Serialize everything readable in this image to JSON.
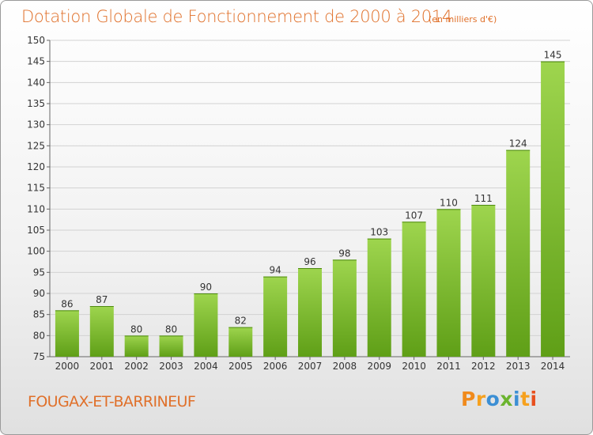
{
  "title": "Dotation Globale de Fonctionnement de 2000 à 2014",
  "subtitle": "(en milliers d'€)",
  "footer": {
    "place": "FOUGAX-ET-BARRINEUF",
    "logo": "Proxiti"
  },
  "colors": {
    "title": "#e0702a",
    "bar_top": "#9ed54e",
    "bar_bottom": "#5f9f17",
    "logo_letters": [
      "#f08a1c",
      "#f6a11e",
      "#3c8fd4",
      "#6bb42e",
      "#3c8fd4",
      "#f6a11e",
      "#e8501e"
    ]
  },
  "chart_data": {
    "type": "bar",
    "categories": [
      "2000",
      "2001",
      "2002",
      "2003",
      "2004",
      "2005",
      "2006",
      "2007",
      "2008",
      "2009",
      "2010",
      "2011",
      "2012",
      "2013",
      "2014"
    ],
    "values": [
      86,
      87,
      80,
      80,
      90,
      82,
      94,
      96,
      98,
      103,
      107,
      110,
      111,
      124,
      145
    ],
    "ylim": [
      75,
      150
    ],
    "yticks": [
      75,
      80,
      85,
      90,
      95,
      100,
      105,
      110,
      115,
      120,
      125,
      130,
      135,
      140,
      145,
      150
    ],
    "grid": true,
    "data_labels": true
  }
}
